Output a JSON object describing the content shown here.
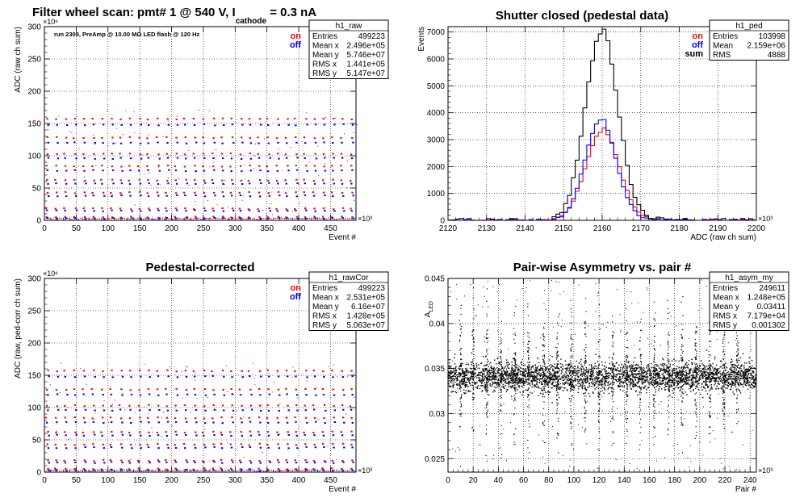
{
  "colors": {
    "on": "#ff0000",
    "off": "#0000ff",
    "sum": "#000000",
    "points": "#000000",
    "grid": "#000000"
  },
  "chart_data": [
    {
      "type": "scatter",
      "title_parts": [
        "Filter wheel scan: pmt#   1 @   540 V, I",
        "cathode",
        " = 0.3 nA"
      ],
      "annotation": "run 2309, PreAmp @ 10.00 MΩ LED flash @  120 Hz",
      "xlabel": "Event #",
      "ylabel": "ADC (raw ch sum)",
      "x_exponent": "×10³",
      "y_exponent": "×10⁶",
      "xlim": [
        0,
        490
      ],
      "ylim": [
        0,
        300
      ],
      "xticks": [
        0,
        50,
        100,
        150,
        200,
        250,
        300,
        350,
        400,
        450
      ],
      "yticks": [
        0,
        50,
        100,
        150,
        200,
        250,
        300
      ],
      "grid": true,
      "legend": {
        "position": "top-right",
        "entries": [
          {
            "name": "on",
            "color": "#ff0000"
          },
          {
            "name": "off",
            "color": "#0000ff"
          }
        ]
      },
      "levels": [
        [
          157,
          148
        ],
        [
          128,
          120
        ],
        [
          103,
          96
        ],
        [
          84,
          77
        ],
        [
          62,
          57
        ],
        [
          43,
          38
        ],
        [
          18,
          15
        ],
        [
          5,
          3
        ]
      ],
      "stats": {
        "name": "h1_raw",
        "rows": [
          [
            "Entries",
            "499223"
          ],
          [
            "Mean x",
            "2.496e+05"
          ],
          [
            "Mean y",
            "5.746e+07"
          ],
          [
            "RMS x",
            "1.441e+05"
          ],
          [
            "RMS y",
            "5.147e+07"
          ]
        ]
      }
    },
    {
      "type": "line",
      "title": "Shutter closed (pedestal data)",
      "xlabel": "ADC (raw ch sum)",
      "ylabel": "Events",
      "x_exponent": "×10³",
      "xlim": [
        2120,
        2200
      ],
      "ylim": [
        0,
        7200
      ],
      "xticks": [
        2120,
        2130,
        2140,
        2150,
        2160,
        2170,
        2180,
        2190,
        2200
      ],
      "yticks": [
        0,
        1000,
        2000,
        3000,
        4000,
        5000,
        6000,
        7000
      ],
      "grid": true,
      "legend": {
        "position": "top-right",
        "entries": [
          {
            "name": "on",
            "color": "#ff0000"
          },
          {
            "name": "off",
            "color": "#0000ff"
          },
          {
            "name": "sum",
            "color": "#000000"
          }
        ]
      },
      "series": [
        {
          "name": "on",
          "color": "#ff0000",
          "mean": 2160,
          "sigma": 4.3,
          "peak": 3300
        },
        {
          "name": "off",
          "color": "#0000ff",
          "mean": 2159.5,
          "sigma": 4.0,
          "peak": 3700
        },
        {
          "name": "sum",
          "color": "#000000",
          "mean": 2159.8,
          "sigma": 4.2,
          "peak": 6950
        }
      ],
      "stats": {
        "name": "h1_ped",
        "rows": [
          [
            "Entries",
            "103998"
          ],
          [
            "Mean",
            "2.159e+06"
          ],
          [
            "RMS",
            "4888"
          ]
        ]
      }
    },
    {
      "type": "scatter",
      "title": "Pedestal-corrected",
      "xlabel": "Event #",
      "ylabel": "ADC (raw, ped-corr ch sum)",
      "x_exponent": "×10³",
      "y_exponent": "×10⁶",
      "xlim": [
        0,
        490
      ],
      "ylim": [
        0,
        300
      ],
      "xticks": [
        0,
        50,
        100,
        150,
        200,
        250,
        300,
        350,
        400,
        450
      ],
      "yticks": [
        0,
        50,
        100,
        150,
        200,
        250,
        300
      ],
      "grid": true,
      "legend": {
        "position": "top-right",
        "entries": [
          {
            "name": "on",
            "color": "#ff0000"
          },
          {
            "name": "off",
            "color": "#0000ff"
          }
        ]
      },
      "levels": [
        [
          157,
          148
        ],
        [
          128,
          120
        ],
        [
          103,
          96
        ],
        [
          84,
          77
        ],
        [
          62,
          57
        ],
        [
          43,
          38
        ],
        [
          18,
          15
        ],
        [
          5,
          3
        ]
      ],
      "stats": {
        "name": "h1_rawCor",
        "rows": [
          [
            "Entries",
            "499223"
          ],
          [
            "Mean x",
            "2.531e+05"
          ],
          [
            "Mean y",
            "6.16e+07"
          ],
          [
            "RMS x",
            "1.428e+05"
          ],
          [
            "RMS y",
            "5.063e+07"
          ]
        ]
      }
    },
    {
      "type": "scatter",
      "title": "Pair-wise Asymmetry vs. pair #",
      "xlabel": "Pair #",
      "ylabel_main": "A",
      "ylabel_sub": "LED",
      "x_exponent": "×10³",
      "xlim": [
        0,
        245
      ],
      "ylim": [
        0.0235,
        0.045
      ],
      "xticks": [
        0,
        20,
        40,
        60,
        80,
        100,
        120,
        140,
        160,
        180,
        200,
        220,
        240
      ],
      "yticks": [
        0.025,
        0.03,
        0.035,
        0.04,
        0.045
      ],
      "grid": true,
      "band_center": 0.0341,
      "band_halfwidth": 0.0014,
      "spike_x": [
        10,
        20,
        31,
        42,
        53,
        64,
        76,
        87,
        98,
        109,
        120,
        131,
        142,
        153,
        164,
        175,
        186,
        197,
        208,
        219,
        230
      ],
      "stats": {
        "name": "h1_asym_my",
        "rows": [
          [
            "Entries",
            "249611"
          ],
          [
            "Mean x",
            "1.248e+05"
          ],
          [
            "Mean y",
            "0.03411"
          ],
          [
            "RMS x",
            "7.179e+04"
          ],
          [
            "RMS y",
            "0.001302"
          ]
        ]
      }
    }
  ]
}
